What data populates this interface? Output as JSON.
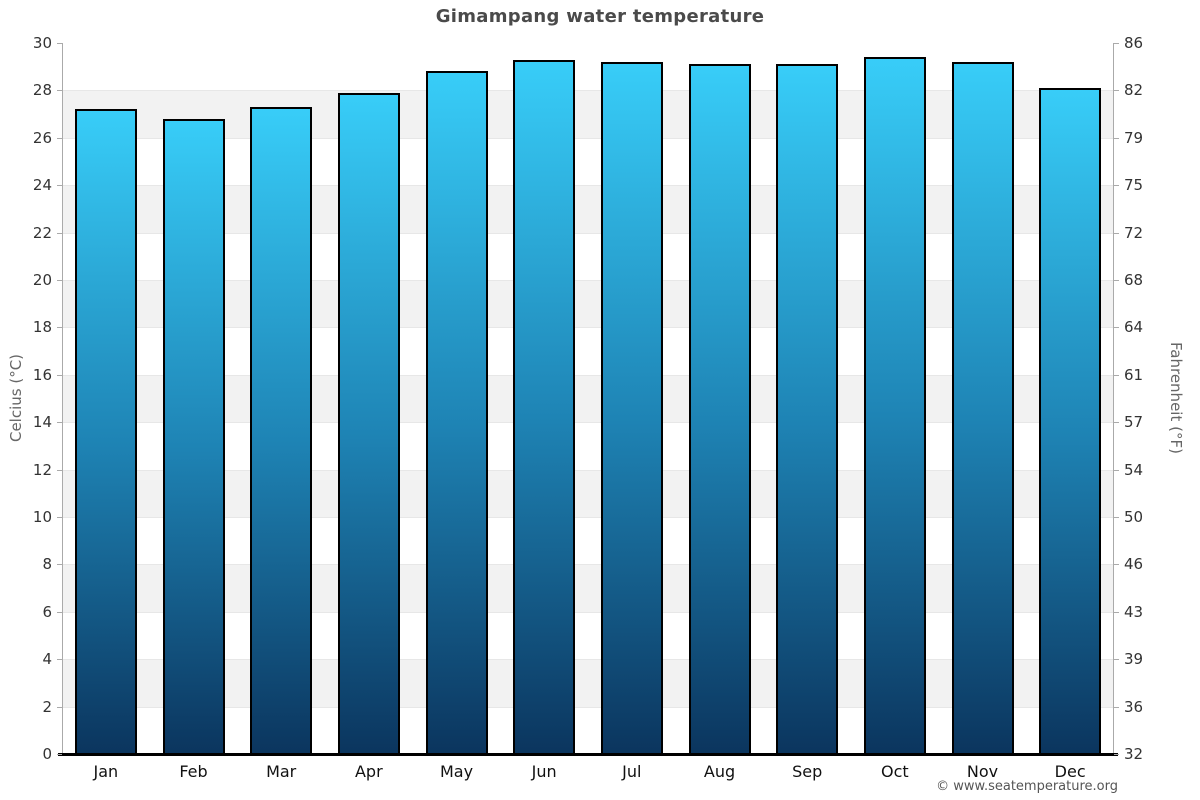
{
  "chart_data": {
    "type": "bar",
    "title": "Gimampang water temperature",
    "categories": [
      "Jan",
      "Feb",
      "Mar",
      "Apr",
      "May",
      "Jun",
      "Jul",
      "Aug",
      "Sep",
      "Oct",
      "Nov",
      "Dec"
    ],
    "values": [
      27.2,
      26.8,
      27.3,
      27.9,
      28.8,
      29.3,
      29.2,
      29.1,
      29.1,
      29.4,
      29.2,
      28.1
    ],
    "unit": "°C",
    "xlabel": "",
    "ylabel": "Celcius (°C)",
    "ylabel_right": "Fahrenheit (°F)",
    "ylim": [
      0,
      30
    ],
    "yticks_celsius": [
      0,
      2,
      4,
      6,
      8,
      10,
      12,
      14,
      16,
      18,
      20,
      22,
      24,
      26,
      28,
      30
    ],
    "yticks_fahrenheit_labels": [
      "32",
      "36",
      "39",
      "43",
      "46",
      "50",
      "54",
      "57",
      "61",
      "64",
      "68",
      "72",
      "75",
      "79",
      "82",
      "86"
    ],
    "grid": "alternating horizontal bands every 2°C, white and light gray",
    "legend": false,
    "colors": {
      "bar_gradient_top": "#38cdf8",
      "bar_gradient_mid": "#1e83b4",
      "bar_gradient_bottom": "#0b355e",
      "bar_border": "#000000",
      "band_gray": "#f2f2f2",
      "band_white": "#ffffff",
      "gridline": "#e7e7e7",
      "axis_line": "#aaaaaa",
      "baseline": "#000000",
      "title_text": "#4a4a4a",
      "tick_text": "#333333",
      "month_text": "#111111",
      "axis_title_text": "#666666"
    }
  },
  "footer": {
    "credit": "© www.seatemperature.org"
  }
}
